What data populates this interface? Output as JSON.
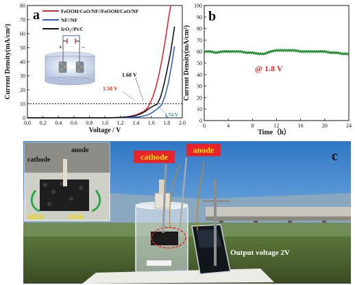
{
  "figure": {
    "panel_a_label": "a",
    "panel_b_label": "b",
    "panel_c_label": "c",
    "photo_labels": {
      "inset_cathode": "cathode",
      "inset_anode": "anode",
      "her": "HER",
      "oer": "OER",
      "cathode_tag": "cathode",
      "anode_tag": "anode",
      "output": "Output voltage 2V"
    }
  },
  "chart_data": [
    {
      "id": "a",
      "type": "line",
      "xlabel": "Voltage / V",
      "ylabel": "Current Density(mA/cm²)",
      "xlim": [
        0.0,
        2.0
      ],
      "ylim": [
        0,
        80
      ],
      "xticks": [
        "0.0",
        "0.2",
        "0.4",
        "0.6",
        "0.8",
        "1.0",
        "1.2",
        "1.4",
        "1.6",
        "1.8",
        "2.0"
      ],
      "yticks": [
        "0",
        "10",
        "20",
        "30",
        "40",
        "50",
        "60",
        "70",
        "80"
      ],
      "series": [
        {
          "name": "FeOOH/CoO/NF//FeOOH/CoO/NF",
          "color": "#e8242a",
          "x": [
            0.0,
            1.0,
            1.2,
            1.3,
            1.4,
            1.5,
            1.55,
            1.58,
            1.62,
            1.66,
            1.7,
            1.74,
            1.78,
            1.82,
            1.85
          ],
          "y": [
            0,
            0,
            0.3,
            0.8,
            2,
            4.5,
            7,
            10,
            15,
            22,
            31,
            42,
            55,
            70,
            80
          ]
        },
        {
          "name": "NF//NF",
          "color": "#2f5fd0",
          "x": [
            0.0,
            1.1,
            1.3,
            1.45,
            1.55,
            1.62,
            1.68,
            1.72,
            1.74,
            1.78,
            1.82,
            1.86,
            1.9
          ],
          "y": [
            0,
            0,
            0.2,
            0.8,
            2,
            4,
            6.5,
            8.5,
            10,
            16,
            25,
            37,
            51
          ]
        },
        {
          "name": "IrO₂//Pt/C",
          "color": "#111111",
          "x": [
            0.0,
            1.0,
            1.2,
            1.35,
            1.45,
            1.52,
            1.58,
            1.63,
            1.68,
            1.72,
            1.76,
            1.8,
            1.85,
            1.9
          ],
          "y": [
            0,
            0,
            0.3,
            1,
            2.5,
            4.5,
            7,
            8.5,
            10,
            15,
            23,
            33,
            47,
            65
          ]
        }
      ],
      "reference_line": {
        "y": 10,
        "style": "dotted"
      },
      "annotations": [
        "1.58 V",
        "1.68 V",
        "1.74 V"
      ]
    },
    {
      "id": "b",
      "type": "line",
      "xlabel": "Time（h）",
      "ylabel": "Current Density(mA/cm²)",
      "xlim": [
        0,
        24
      ],
      "ylim": [
        0,
        100
      ],
      "xticks": [
        "0",
        "4",
        "8",
        "12",
        "16",
        "20",
        "24"
      ],
      "yticks": [
        "0",
        "10",
        "20",
        "30",
        "40",
        "50",
        "60",
        "70",
        "80",
        "90",
        "100"
      ],
      "series": [
        {
          "name": "",
          "color": "#1e8c2a",
          "x": [
            0,
            1,
            2,
            3,
            4,
            5,
            6,
            7,
            8,
            9,
            10,
            11,
            12,
            13,
            14,
            15,
            16,
            17,
            18,
            19,
            20,
            21,
            22,
            23,
            24
          ],
          "y": [
            60,
            60,
            59,
            60,
            60,
            60,
            60,
            59,
            59,
            58,
            58,
            60,
            61,
            61,
            61,
            61,
            60,
            60,
            60,
            60,
            60,
            59,
            59,
            58,
            58
          ]
        }
      ],
      "annotations": [
        "@ 1.8 V"
      ]
    }
  ]
}
